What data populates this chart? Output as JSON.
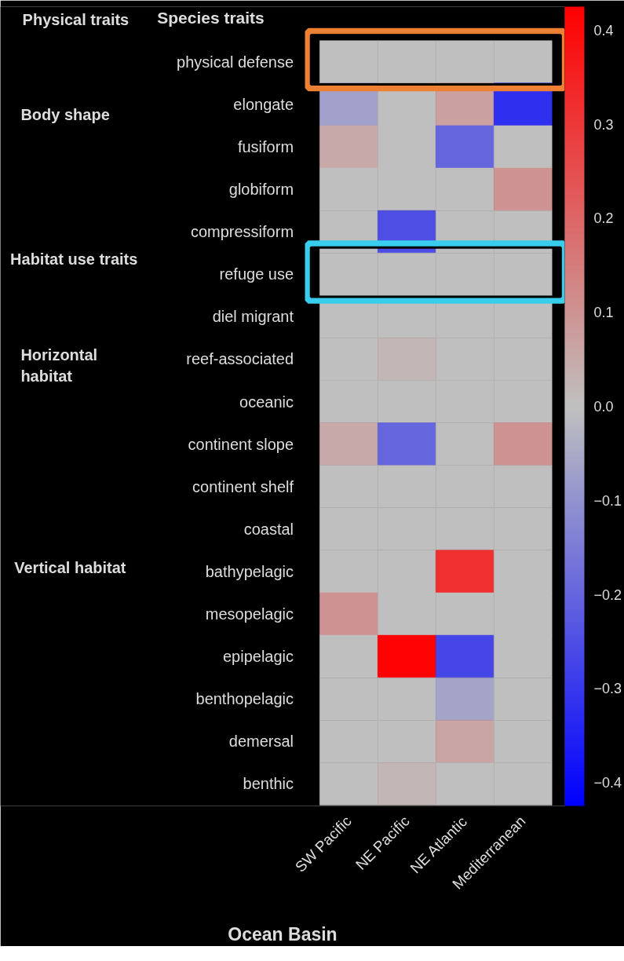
{
  "chart_data": {
    "type": "heatmap",
    "title": "Species traits",
    "xlabel": "Ocean Basin",
    "categories": [
      "SW Pacific",
      "NE Pacific",
      "NE Atlantic",
      "Mediterranean"
    ],
    "y_categories": [
      "physical defense",
      "elongate",
      "fusiform",
      "globiform",
      "compressiform",
      "refuge use",
      "diel migrant",
      "reef-associated",
      "oceanic",
      "continent slope",
      "continent shelf",
      "coastal",
      "bathypelagic",
      "mesopelagic",
      "epipelagic",
      "benthopelagic",
      "demersal",
      "benthic"
    ],
    "cells": [
      [
        0,
        0,
        0,
        0
      ],
      [
        -0.07,
        0,
        0.07,
        -0.32
      ],
      [
        0.05,
        0,
        -0.2,
        0
      ],
      [
        0,
        0,
        0,
        0.1
      ],
      [
        0,
        -0.25,
        0,
        0
      ],
      [
        0,
        0,
        0,
        0
      ],
      [
        0,
        0,
        0,
        0
      ],
      [
        0,
        0.02,
        0,
        0
      ],
      [
        0,
        0,
        0,
        0
      ],
      [
        0.05,
        -0.2,
        0,
        0.1
      ],
      [
        0,
        0,
        0,
        0
      ],
      [
        0,
        0,
        0,
        0
      ],
      [
        0,
        0,
        0.32,
        0
      ],
      [
        0.1,
        0,
        0,
        0
      ],
      [
        0,
        0.42,
        -0.27,
        0
      ],
      [
        0,
        0,
        -0.06,
        0
      ],
      [
        0,
        0,
        0.06,
        0
      ],
      [
        0,
        0.02,
        0,
        0
      ]
    ],
    "clim": [
      -0.425,
      0.425
    ],
    "cticks": [
      {
        "value": -0.4,
        "label": "−0.4"
      },
      {
        "value": -0.3,
        "label": "−0.3"
      },
      {
        "value": -0.2,
        "label": "−0.2"
      },
      {
        "value": -0.1,
        "label": "−0.1"
      },
      {
        "value": 0,
        "label": "0.0"
      },
      {
        "value": 0.1,
        "label": "0.1"
      },
      {
        "value": 0.2,
        "label": "0.2"
      },
      {
        "value": 0.3,
        "label": "0.3"
      },
      {
        "value": 0.4,
        "label": "0.4"
      }
    ],
    "annotations": [
      "Physical traits",
      "Body shape",
      "Habitat use traits",
      "Horizontal\nhabitat",
      "Vertical habitat"
    ]
  }
}
